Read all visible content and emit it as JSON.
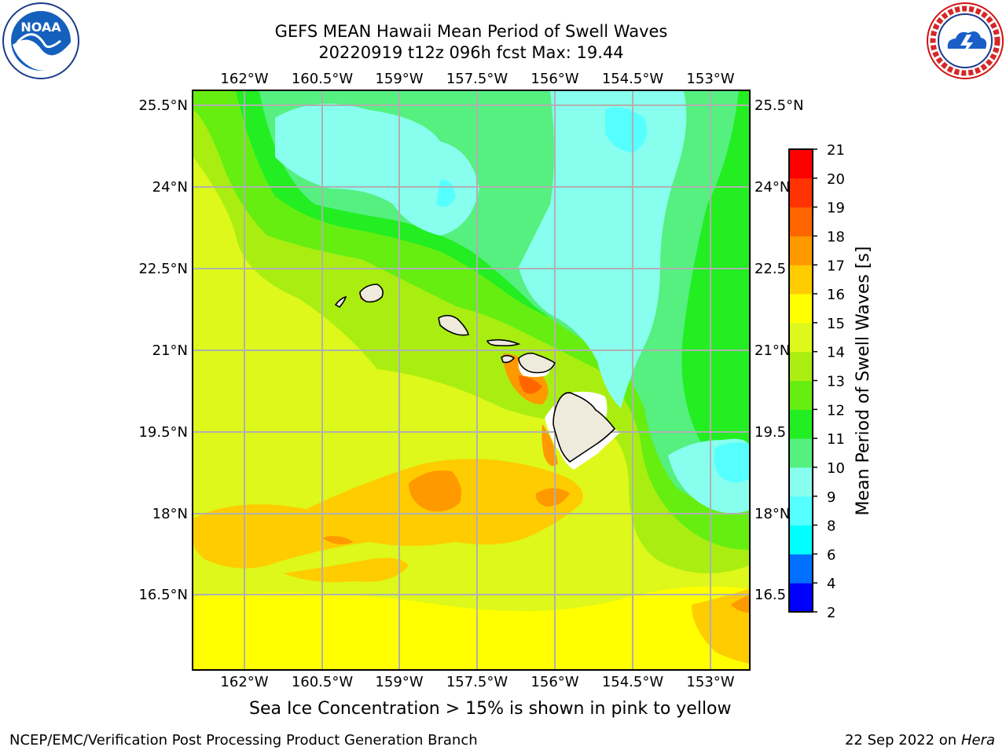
{
  "header": {
    "title_line1": "GEFS MEAN Hawaii Mean Period of Swell Waves",
    "title_line2": "20220919 t12z 096h fcst   Max: 19.44"
  },
  "map": {
    "lon_ticks": [
      "162°W",
      "160.5°W",
      "159°W",
      "157.5°W",
      "156°W",
      "154.5°W",
      "153°W"
    ],
    "lat_ticks_left": [
      "25.5°N",
      "24°N",
      "22.5°N",
      "21°N",
      "19.5°N",
      "18°N",
      "16.5°N"
    ],
    "lat_ticks_right": [
      "25.5°N",
      "24°N",
      "22.5",
      "21°N",
      "19.5",
      "18°N",
      "16.5"
    ],
    "islands": [
      "Niihau",
      "Kauai",
      "Oahu",
      "Molokai",
      "Lanai",
      "Maui",
      "Hawaii"
    ]
  },
  "colorbar": {
    "title": "Mean Period of Swell Waves [s]",
    "levels": [
      "2",
      "4",
      "6",
      "8",
      "9",
      "10",
      "11",
      "12",
      "13",
      "14",
      "15",
      "16",
      "17",
      "18",
      "19",
      "20",
      "21"
    ],
    "colors": [
      "#0000ff",
      "#0070ff",
      "#00ffff",
      "#55ffff",
      "#88ffee",
      "#55f080",
      "#22ee22",
      "#66ee11",
      "#aaee11",
      "#ddf81a",
      "#ffff00",
      "#ffcc00",
      "#ff9900",
      "#ff6600",
      "#ff3300",
      "#ff0000"
    ]
  },
  "note": "Sea Ice Concentration > 15% is shown in pink to yellow",
  "footer": {
    "left": "NCEP/EMC/Verification Post Processing Product Generation Branch",
    "right_date": "22 Sep 2022 on",
    "right_host": "Hera"
  },
  "logos": {
    "noaa_text": "NOAA",
    "nws_text": "NATIONAL WEATHER SERVICE"
  }
}
